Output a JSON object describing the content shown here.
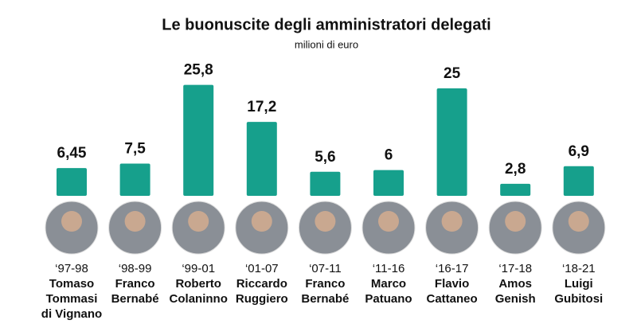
{
  "chart_data": {
    "type": "bar",
    "title": "Le buonuscite degli amministratori delegati",
    "subtitle": "milioni di euro",
    "categories": [
      "‘97-98",
      "‘98-99",
      "‘99-01",
      "‘01-07",
      "‘07-11",
      "‘11-16",
      "‘16-17",
      "‘17-18",
      "‘18-21"
    ],
    "names": [
      [
        "Tomaso",
        "Tommasi",
        "di Vignano"
      ],
      [
        "Franco",
        "Bernabé"
      ],
      [
        "Roberto",
        "Colaninno"
      ],
      [
        "Riccardo",
        "Ruggiero"
      ],
      [
        "Franco",
        "Bernabé"
      ],
      [
        "Marco",
        "Patuano"
      ],
      [
        "Flavio",
        "Cattaneo"
      ],
      [
        "Amos",
        "Genish"
      ],
      [
        "Luigi",
        "Gubitosi"
      ]
    ],
    "values": [
      6.45,
      7.5,
      25.8,
      17.2,
      5.6,
      6,
      25,
      2.8,
      6.9
    ],
    "value_labels": [
      "6,45",
      "7,5",
      "25,8",
      "17,2",
      "5,6",
      "6",
      "25",
      "2,8",
      "6,9"
    ],
    "color": "#16a08c"
  }
}
